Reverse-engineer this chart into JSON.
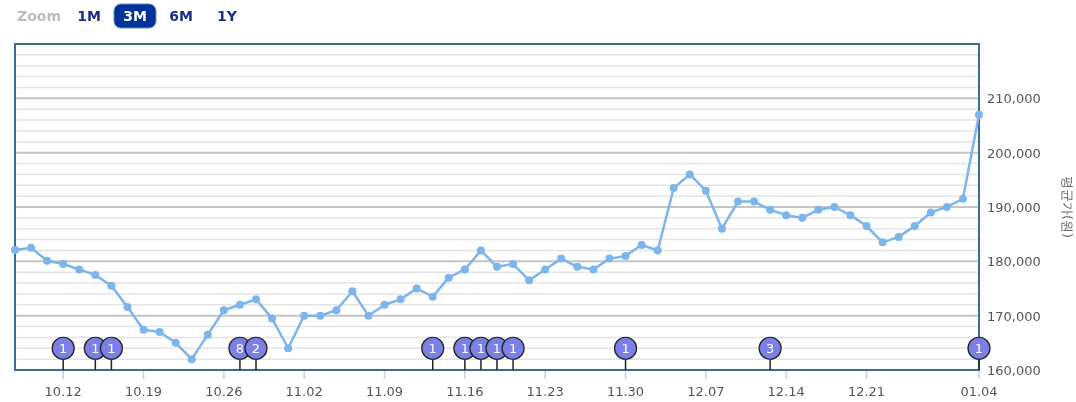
{
  "chart_data": {
    "type": "line",
    "ylabel": "평균가(원)",
    "annotations": [
      "Zoom",
      "1M",
      "3M",
      "6M",
      "1Y",
      {
        "text": "1",
        "y": 164000
      },
      {
        "text": "1",
        "y": 164000
      },
      {
        "text": "1",
        "y": 164000
      },
      {
        "text": "8",
        "y": 164000
      },
      {
        "text": "2",
        "y": 164000
      },
      {
        "text": "1",
        "y": 164000
      },
      {
        "text": "1",
        "y": 164000
      },
      {
        "text": "1",
        "y": 164000
      },
      {
        "text": "1",
        "y": 164000
      },
      {
        "text": "1",
        "y": 164000
      },
      {
        "text": "1",
        "y": 164000
      },
      {
        "text": "3",
        "y": 164000
      },
      {
        "text": "1",
        "y": 164000
      }
    ],
    "categories": [
      null,
      null,
      null,
      "10.12",
      null,
      null,
      null,
      null,
      "10.19",
      null,
      null,
      null,
      null,
      "10.26",
      null,
      null,
      null,
      null,
      "11.02",
      null,
      null,
      null,
      null,
      "11.09",
      null,
      null,
      null,
      null,
      "11.16",
      null,
      null,
      null,
      null,
      "11.23",
      null,
      null,
      null,
      null,
      "11.30",
      null,
      null,
      null,
      null,
      "12.07",
      null,
      null,
      null,
      null,
      "12.14",
      null,
      null,
      null,
      null,
      "12.21",
      null,
      null,
      null,
      null,
      null,
      null,
      "01.04"
    ],
    "series": [
      {
        "color": "#7cb5ec",
        "values": [
          182100,
          182500,
          180100,
          179500,
          178500,
          177500,
          175500,
          171600,
          167400,
          167000,
          165000,
          162000,
          166500,
          171000,
          172000,
          173000,
          169500,
          164000,
          170000,
          170000,
          171000,
          174500,
          170000,
          172000,
          173000,
          175000,
          173500,
          177000,
          178500,
          182000,
          179000,
          179500,
          176500,
          178500,
          180500,
          179000,
          178500,
          180500,
          181000,
          183000,
          182000,
          193500,
          196000,
          193000,
          186000,
          191000,
          191000,
          189500,
          188500,
          188000,
          189500,
          190000,
          188500,
          186500,
          183500,
          184500,
          186500,
          189000,
          190000,
          191500,
          207000
        ]
      },
      {
        "type": "scatter",
        "color": "#7b7fe6",
        "values": [
          null,
          null,
          null,
          164000,
          null,
          164000,
          164000,
          null,
          null,
          null,
          null,
          null,
          null,
          null,
          164000,
          164000,
          null,
          null,
          null,
          null,
          null,
          null,
          null,
          null,
          null,
          null,
          164000,
          null,
          164000,
          164000,
          164000,
          164000,
          null,
          null,
          null,
          null,
          null,
          null,
          164000,
          null,
          null,
          null,
          null,
          null,
          null,
          null,
          null,
          164000,
          null,
          null,
          null,
          null,
          null,
          null,
          null,
          null,
          null,
          null,
          null,
          null,
          164000
        ]
      }
    ],
    "ylim": [
      160000,
      220000
    ],
    "yticks": [
      {
        "value": 160000,
        "label": "160,000"
      },
      {
        "value": 162000,
        "label": null
      },
      {
        "value": 164000,
        "label": null
      },
      {
        "value": 166000,
        "label": null
      },
      {
        "value": 168000,
        "label": null
      },
      {
        "value": 170000,
        "label": "170,000"
      },
      {
        "value": 172000,
        "label": null
      },
      {
        "value": 174000,
        "label": null
      },
      {
        "value": 176000,
        "label": null
      },
      {
        "value": 178000,
        "label": null
      },
      {
        "value": 180000,
        "label": "180,000"
      },
      {
        "value": 182000,
        "label": null
      },
      {
        "value": 184000,
        "label": null
      },
      {
        "value": 186000,
        "label": null
      },
      {
        "value": 188000,
        "label": null
      },
      {
        "value": 190000,
        "label": "190,000"
      },
      {
        "value": 192000,
        "label": null
      },
      {
        "value": 194000,
        "label": null
      },
      {
        "value": 196000,
        "label": null
      },
      {
        "value": 198000,
        "label": null
      },
      {
        "value": 200000,
        "label": "200,000"
      },
      {
        "value": 202000,
        "label": null
      },
      {
        "value": 204000,
        "label": null
      },
      {
        "value": 206000,
        "label": null
      },
      {
        "value": 208000,
        "label": null
      },
      {
        "value": 210000,
        "label": "210,000"
      },
      {
        "value": 212000,
        "label": null
      },
      {
        "value": 214000,
        "label": null
      },
      {
        "value": 216000,
        "label": null
      },
      {
        "value": 218000,
        "label": null
      },
      {
        "value": 220000,
        "label": null
      }
    ],
    "grid": "y",
    "marker": "circle"
  }
}
